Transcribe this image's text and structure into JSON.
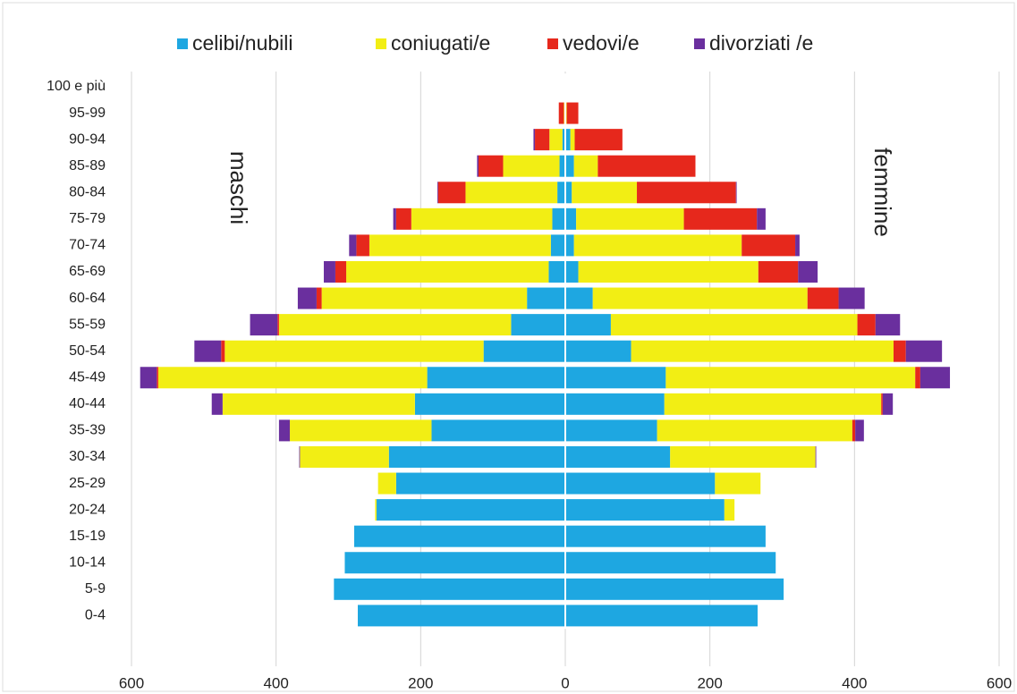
{
  "chart_data": {
    "type": "population_pyramid",
    "categories": [
      "100 e più",
      "95-99",
      "90-94",
      "85-89",
      "80-84",
      "75-79",
      "70-74",
      "65-69",
      "60-64",
      "55-59",
      "50-54",
      "45-49",
      "40-44",
      "35-39",
      "30-34",
      "25-29",
      "20-24",
      "15-19",
      "10-14",
      "5-9",
      "0-4"
    ],
    "side_labels": [
      "maschi",
      "femmine"
    ],
    "series": [
      {
        "name": "celibi/nubili",
        "color": "#1ea7e1",
        "male": [
          0,
          0,
          -4,
          -8,
          -11,
          -18,
          -20,
          -23,
          -53,
          -75,
          -113,
          -191,
          -208,
          -185,
          -244,
          -234,
          -261,
          -292,
          -305,
          -320,
          -287
        ],
        "female": [
          0,
          1,
          7,
          12,
          9,
          15,
          12,
          18,
          38,
          63,
          91,
          139,
          137,
          127,
          145,
          207,
          220,
          277,
          291,
          302,
          266
        ]
      },
      {
        "name": "coniugati/e",
        "color": "#f2ee14",
        "male": [
          0,
          -2,
          -18,
          -78,
          -127,
          -195,
          -251,
          -280,
          -284,
          -321,
          -358,
          -372,
          -266,
          -196,
          -123,
          -25,
          -2,
          0,
          0,
          0,
          0
        ],
        "female": [
          0,
          1,
          6,
          33,
          90,
          149,
          232,
          249,
          297,
          341,
          363,
          345,
          300,
          270,
          201,
          63,
          14,
          0,
          0,
          0,
          0
        ]
      },
      {
        "name": "vedovi/e",
        "color": "#e6281c",
        "male": [
          0,
          -7,
          -20,
          -34,
          -38,
          -21,
          -18,
          -15,
          -7,
          -2,
          -5,
          -2,
          0,
          0,
          0,
          0,
          0,
          0,
          0,
          0,
          0
        ],
        "female": [
          0,
          16,
          66,
          135,
          137,
          101,
          74,
          55,
          43,
          25,
          17,
          7,
          2,
          4,
          0,
          0,
          0,
          0,
          0,
          0,
          0
        ]
      },
      {
        "name": "divorziati /e",
        "color": "#6a2f9e",
        "male": [
          0,
          0,
          -2,
          -2,
          -1,
          -4,
          -10,
          -16,
          -26,
          -38,
          -37,
          -23,
          -15,
          -15,
          -1,
          0,
          0,
          0,
          0,
          0,
          0
        ],
        "female": [
          0,
          0,
          0,
          0,
          1,
          12,
          6,
          27,
          36,
          34,
          50,
          41,
          14,
          12,
          1,
          0,
          0,
          0,
          0,
          0,
          0
        ]
      }
    ],
    "xlim": [
      -600,
      600
    ],
    "xticks": [
      {
        "value": -600,
        "label": "600"
      },
      {
        "value": -400,
        "label": "400"
      },
      {
        "value": -200,
        "label": "200"
      },
      0,
      200,
      400,
      600
    ],
    "grid": true
  }
}
